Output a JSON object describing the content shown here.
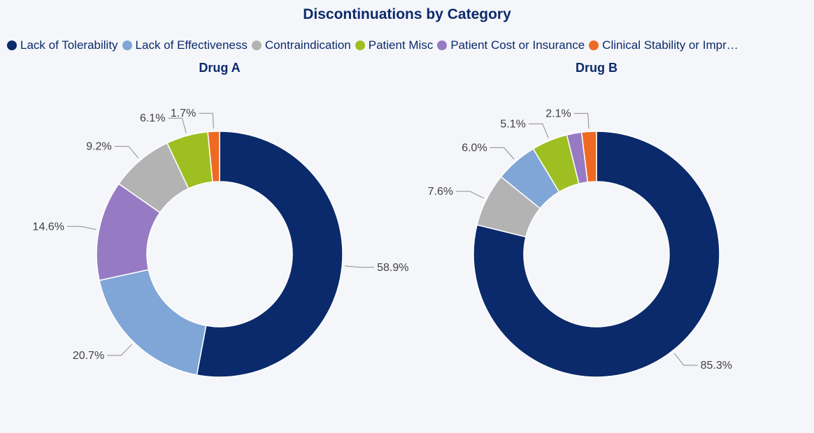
{
  "title": "Discontinuations by Category",
  "legend": [
    {
      "label": "Lack of Tolerability",
      "color": "#0b2a6b"
    },
    {
      "label": "Lack of Effectiveness",
      "color": "#7fa6d6"
    },
    {
      "label": "Contraindication",
      "color": "#b3b3b3"
    },
    {
      "label": "Patient Misc",
      "color": "#9dbf22"
    },
    {
      "label": "Patient Cost or Insurance",
      "color": "#967bc4"
    },
    {
      "label": "Clinical Stability or Impr…",
      "color": "#ee6a24"
    }
  ],
  "chart_data": [
    {
      "type": "pie",
      "title": "Drug A",
      "legend_position": "top",
      "slices": [
        {
          "category": "Lack of Tolerability",
          "value": 58.9,
          "label": "58.9%"
        },
        {
          "category": "Lack of Effectiveness",
          "value": 20.7,
          "label": "20.7%"
        },
        {
          "category": "Patient Cost or Insurance",
          "value": 14.6,
          "label": "14.6%"
        },
        {
          "category": "Contraindication",
          "value": 9.2,
          "label": "9.2%"
        },
        {
          "category": "Patient Misc",
          "value": 6.1,
          "label": "6.1%"
        },
        {
          "category": "Clinical Stability or Impr…",
          "value": 1.7,
          "label": "1.7%"
        }
      ]
    },
    {
      "type": "pie",
      "title": "Drug B",
      "legend_position": "top",
      "slices": [
        {
          "category": "Lack of Tolerability",
          "value": 85.3,
          "label": "85.3%"
        },
        {
          "category": "Contraindication",
          "value": 7.6,
          "label": "7.6%"
        },
        {
          "category": "Lack of Effectiveness",
          "value": 6.0,
          "label": "6.0%"
        },
        {
          "category": "Patient Misc",
          "value": 5.1,
          "label": "5.1%"
        },
        {
          "category": "Patient Cost or Insurance",
          "value": 2.1,
          "label": ""
        },
        {
          "category": "Clinical Stability or Impr…",
          "value": 2.1,
          "label": "2.1%"
        }
      ]
    }
  ]
}
